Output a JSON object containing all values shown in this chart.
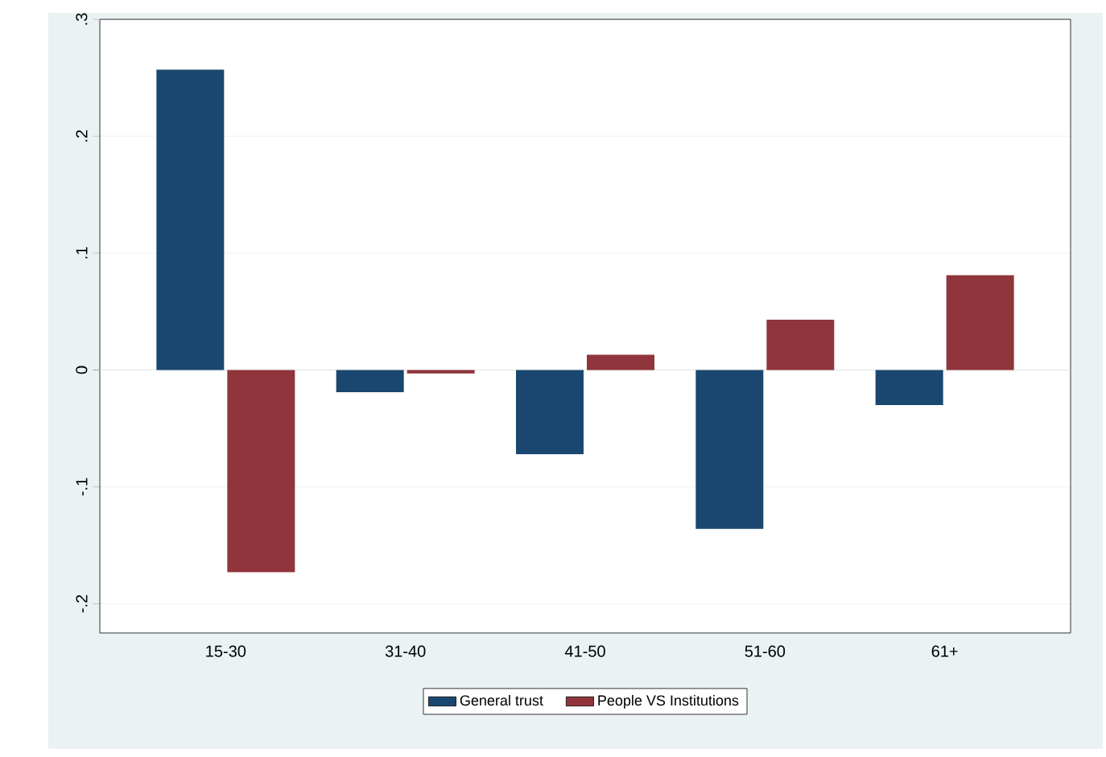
{
  "chart_data": {
    "type": "bar",
    "categories": [
      "15-30",
      "31-40",
      "41-50",
      "51-60",
      "61+"
    ],
    "series": [
      {
        "name": "General trust",
        "color": "#1a476f",
        "values": [
          0.257,
          -0.019,
          -0.072,
          -0.136,
          -0.03
        ]
      },
      {
        "name": "People VS Institutions",
        "color": "#90353b",
        "values": [
          -0.173,
          -0.003,
          0.013,
          0.043,
          0.081
        ]
      }
    ],
    "ylim": [
      -0.225,
      0.3
    ],
    "yticks": [
      {
        "value": -0.2,
        "label": "-.2"
      },
      {
        "value": -0.1,
        "label": "-.1"
      },
      {
        "value": 0,
        "label": "0"
      },
      {
        "value": 0.1,
        "label": ".1"
      },
      {
        "value": 0.2,
        "label": ".2"
      },
      {
        "value": 0.3,
        "label": ".3"
      }
    ],
    "grid": "y",
    "legend": "bottom"
  }
}
